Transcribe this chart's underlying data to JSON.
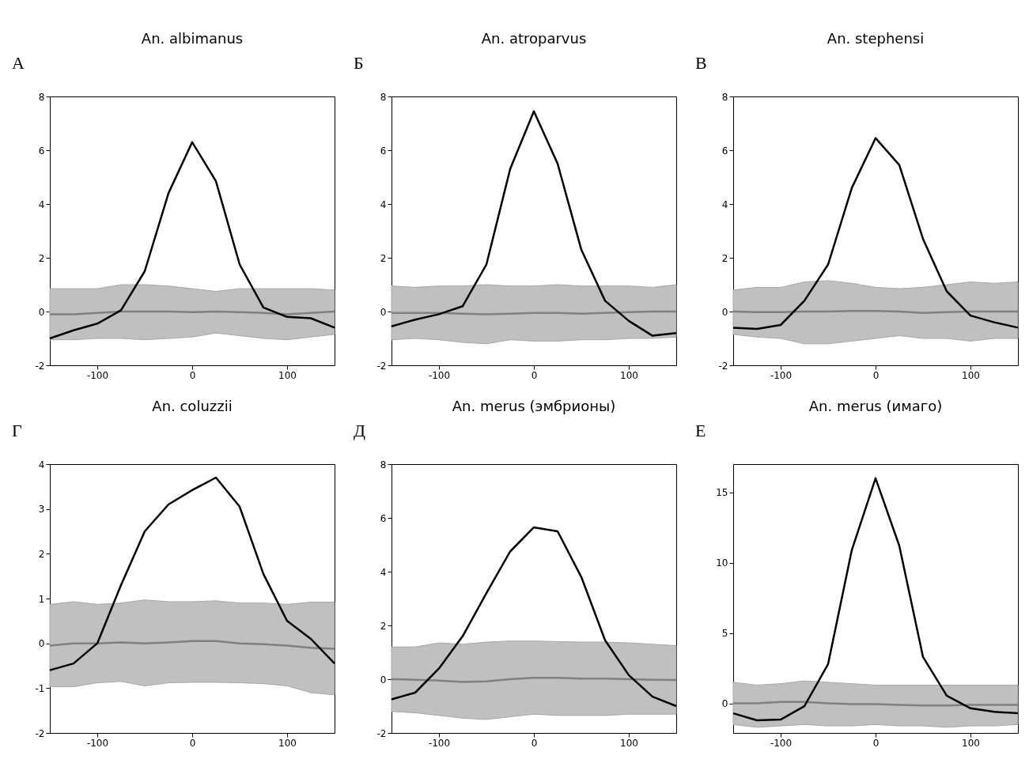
{
  "chart_data": [
    {
      "type": "line",
      "title": "An. albimanus",
      "annotations": [
        "А"
      ],
      "x": [
        -150,
        -125,
        -100,
        -75,
        -50,
        -25,
        0,
        25,
        50,
        75,
        100,
        125,
        150
      ],
      "xlim": [
        -150,
        150
      ],
      "xticks": [
        -100,
        0,
        100
      ],
      "ylim": [
        -2,
        8
      ],
      "yticks": [
        -2,
        0,
        2,
        4,
        6,
        8
      ],
      "grid": false,
      "series": [
        {
          "color": "#808080",
          "values": [
            -0.1,
            -0.1,
            -0.05,
            0,
            0,
            0,
            -0.02,
            0,
            -0.02,
            -0.05,
            -0.1,
            -0.05,
            0
          ],
          "lower": [
            -1.05,
            -1.05,
            -1.0,
            -1.0,
            -1.05,
            -1.0,
            -0.95,
            -0.8,
            -0.9,
            -1.0,
            -1.05,
            -0.95,
            -0.85
          ],
          "upper": [
            0.85,
            0.85,
            0.85,
            1.0,
            1.0,
            0.95,
            0.85,
            0.75,
            0.85,
            0.85,
            0.85,
            0.85,
            0.8
          ]
        },
        {
          "color": "#000000",
          "values": [
            -1.0,
            -0.7,
            -0.45,
            0.05,
            1.5,
            4.4,
            6.3,
            4.85,
            1.75,
            0.15,
            -0.2,
            -0.25,
            -0.6
          ]
        }
      ]
    },
    {
      "type": "line",
      "title": "An. atroparvus",
      "annotations": [
        "Б"
      ],
      "x": [
        -150,
        -125,
        -100,
        -75,
        -50,
        -25,
        0,
        25,
        50,
        75,
        100,
        125,
        150
      ],
      "xlim": [
        -150,
        150
      ],
      "xticks": [
        -100,
        0,
        100
      ],
      "ylim": [
        -2,
        8
      ],
      "yticks": [
        -2,
        0,
        2,
        4,
        6,
        8
      ],
      "grid": false,
      "series": [
        {
          "color": "#808080",
          "values": [
            -0.05,
            -0.05,
            -0.05,
            -0.08,
            -0.1,
            -0.08,
            -0.05,
            -0.05,
            -0.08,
            -0.05,
            -0.02,
            0,
            0
          ],
          "lower": [
            -1.05,
            -1.0,
            -1.05,
            -1.15,
            -1.2,
            -1.05,
            -1.1,
            -1.1,
            -1.05,
            -1.05,
            -1.0,
            -1.0,
            -0.95
          ],
          "upper": [
            0.95,
            0.9,
            0.95,
            0.95,
            1.0,
            0.95,
            0.95,
            1.0,
            0.95,
            0.95,
            0.95,
            0.9,
            1.0
          ]
        },
        {
          "color": "#000000",
          "values": [
            -0.55,
            -0.3,
            -0.1,
            0.2,
            1.75,
            5.3,
            7.45,
            5.5,
            2.3,
            0.4,
            -0.35,
            -0.9,
            -0.8
          ]
        }
      ]
    },
    {
      "type": "line",
      "title": "An. stephensi",
      "annotations": [
        "В"
      ],
      "x": [
        -150,
        -125,
        -100,
        -75,
        -50,
        -25,
        0,
        25,
        50,
        75,
        100,
        125,
        150
      ],
      "xlim": [
        -150,
        150
      ],
      "xticks": [
        -100,
        0,
        100
      ],
      "ylim": [
        -2,
        8
      ],
      "yticks": [
        -2,
        0,
        2,
        4,
        6,
        8
      ],
      "grid": false,
      "series": [
        {
          "color": "#808080",
          "values": [
            0,
            -0.02,
            -0.02,
            0,
            0,
            0.02,
            0.02,
            0,
            -0.05,
            -0.02,
            0,
            0,
            0
          ],
          "lower": [
            -0.85,
            -0.95,
            -1.0,
            -1.2,
            -1.2,
            -1.1,
            -1.0,
            -0.9,
            -1.0,
            -1.0,
            -1.1,
            -1.0,
            -1.0
          ],
          "upper": [
            0.8,
            0.9,
            0.9,
            1.1,
            1.15,
            1.05,
            0.9,
            0.85,
            0.9,
            1.0,
            1.1,
            1.05,
            1.1
          ]
        },
        {
          "color": "#000000",
          "values": [
            -0.6,
            -0.65,
            -0.5,
            0.4,
            1.75,
            4.6,
            6.45,
            5.45,
            2.7,
            0.75,
            -0.15,
            -0.4,
            -0.6
          ]
        }
      ]
    },
    {
      "type": "line",
      "title": "An. coluzzii",
      "annotations": [
        "Г"
      ],
      "x": [
        -150,
        -125,
        -100,
        -75,
        -50,
        -25,
        0,
        25,
        50,
        75,
        100,
        125,
        150
      ],
      "xlim": [
        -150,
        150
      ],
      "xticks": [
        -100,
        0,
        100
      ],
      "ylim": [
        -2,
        4
      ],
      "yticks": [
        -2,
        -1,
        0,
        1,
        2,
        3,
        4
      ],
      "grid": false,
      "series": [
        {
          "color": "#808080",
          "values": [
            -0.05,
            0,
            0,
            0.02,
            0,
            0.02,
            0.05,
            0.05,
            0,
            -0.02,
            -0.05,
            -0.1,
            -0.12
          ],
          "lower": [
            -0.97,
            -0.97,
            -0.88,
            -0.85,
            -0.95,
            -0.88,
            -0.87,
            -0.87,
            -0.88,
            -0.9,
            -0.95,
            -1.1,
            -1.15
          ],
          "upper": [
            0.87,
            0.93,
            0.87,
            0.9,
            0.97,
            0.93,
            0.93,
            0.95,
            0.9,
            0.9,
            0.87,
            0.92,
            0.92
          ]
        },
        {
          "color": "#000000",
          "values": [
            -0.6,
            -0.45,
            0,
            1.3,
            2.5,
            3.1,
            3.42,
            3.7,
            3.05,
            1.55,
            0.5,
            0.1,
            -0.45
          ]
        }
      ]
    },
    {
      "type": "line",
      "title": "An. merus (эмбрионы)",
      "annotations": [
        "Д"
      ],
      "x": [
        -150,
        -125,
        -100,
        -75,
        -50,
        -25,
        0,
        25,
        50,
        75,
        100,
        125,
        150
      ],
      "xlim": [
        -150,
        150
      ],
      "xticks": [
        -100,
        0,
        100
      ],
      "ylim": [
        -2,
        8
      ],
      "yticks": [
        -2,
        0,
        2,
        4,
        6,
        8
      ],
      "grid": false,
      "series": [
        {
          "color": "#808080",
          "values": [
            0,
            -0.02,
            -0.05,
            -0.1,
            -0.08,
            0,
            0.05,
            0.05,
            0.02,
            0.02,
            0,
            -0.02,
            -0.03
          ],
          "lower": [
            -1.2,
            -1.25,
            -1.35,
            -1.45,
            -1.5,
            -1.4,
            -1.3,
            -1.35,
            -1.35,
            -1.35,
            -1.3,
            -1.3,
            -1.3
          ],
          "upper": [
            1.2,
            1.2,
            1.35,
            1.3,
            1.38,
            1.42,
            1.42,
            1.4,
            1.38,
            1.38,
            1.35,
            1.3,
            1.25
          ]
        },
        {
          "color": "#000000",
          "values": [
            -0.75,
            -0.5,
            0.4,
            1.6,
            3.2,
            4.75,
            5.65,
            5.5,
            3.8,
            1.45,
            0.15,
            -0.65,
            -1.0
          ]
        }
      ]
    },
    {
      "type": "line",
      "title": "An. merus (имаго)",
      "annotations": [
        "Е"
      ],
      "x": [
        -150,
        -125,
        -100,
        -75,
        -50,
        -25,
        0,
        25,
        50,
        75,
        100,
        125,
        150
      ],
      "xlim": [
        -150,
        150
      ],
      "xticks": [
        -100,
        0,
        100
      ],
      "ylim": [
        -2.1,
        17
      ],
      "yticks": [
        0,
        5,
        10,
        15
      ],
      "grid": false,
      "series": [
        {
          "color": "#808080",
          "values": [
            0,
            0,
            0.1,
            0.1,
            0,
            -0.05,
            -0.05,
            -0.1,
            -0.15,
            -0.15,
            -0.1,
            -0.1,
            -0.1
          ],
          "lower": [
            -1.5,
            -1.7,
            -1.6,
            -1.5,
            -1.6,
            -1.6,
            -1.5,
            -1.6,
            -1.6,
            -1.7,
            -1.6,
            -1.6,
            -1.5
          ],
          "upper": [
            1.5,
            1.3,
            1.4,
            1.6,
            1.5,
            1.4,
            1.3,
            1.3,
            1.3,
            1.3,
            1.3,
            1.3,
            1.3
          ]
        },
        {
          "color": "#000000",
          "values": [
            -0.7,
            -1.2,
            -1.15,
            -0.2,
            2.8,
            10.9,
            16.0,
            11.2,
            3.3,
            0.55,
            -0.35,
            -0.6,
            -0.7
          ]
        }
      ]
    }
  ]
}
